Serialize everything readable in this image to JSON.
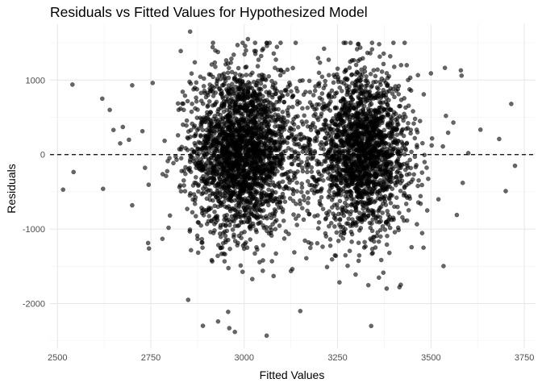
{
  "chart_data": {
    "type": "scatter",
    "title": "Residuals vs Fitted Values for Hypothesized Model",
    "xlabel": "Fitted Values",
    "ylabel": "Residuals",
    "xlim": [
      2480,
      3780
    ],
    "ylim": [
      -2600,
      1750
    ],
    "x_ticks": [
      2500,
      2750,
      3000,
      3250,
      3500,
      3750
    ],
    "y_ticks": [
      -2000,
      -1000,
      0,
      1000
    ],
    "x_tick_labels": [
      "2500",
      "2750",
      "3000",
      "3250",
      "3500",
      "3750"
    ],
    "y_tick_labels": [
      "-2000",
      "-1000",
      "0",
      "1000"
    ],
    "grid": true,
    "reference_line": {
      "y": 0,
      "style": "dashed"
    },
    "point_color": "#000000",
    "point_opacity": 0.6,
    "clusters": [
      {
        "center_x": 2990,
        "center_y": 50,
        "sd_x": 65,
        "sd_y": 560,
        "count": 2100
      },
      {
        "center_x": 3320,
        "center_y": 30,
        "sd_x": 60,
        "sd_y": 520,
        "count": 1700
      },
      {
        "center_x": 3160,
        "center_y": 0,
        "sd_x": 160,
        "sd_y": 600,
        "count": 600
      }
    ],
    "outliers": [
      {
        "x": 2515,
        "y": -470
      },
      {
        "x": 2540,
        "y": 940
      },
      {
        "x": 2543,
        "y": -235
      },
      {
        "x": 2620,
        "y": 750
      },
      {
        "x": 2622,
        "y": -460
      },
      {
        "x": 2640,
        "y": 600
      },
      {
        "x": 2650,
        "y": 330
      },
      {
        "x": 2675,
        "y": 370
      },
      {
        "x": 2700,
        "y": 930
      },
      {
        "x": 2700,
        "y": -680
      },
      {
        "x": 2745,
        "y": -1260
      },
      {
        "x": 2855,
        "y": 1650
      },
      {
        "x": 2830,
        "y": 1390
      },
      {
        "x": 2850,
        "y": -1950
      },
      {
        "x": 2930,
        "y": -2240
      },
      {
        "x": 2960,
        "y": -2330
      },
      {
        "x": 2975,
        "y": -2380
      },
      {
        "x": 3010,
        "y": 1550
      },
      {
        "x": 3060,
        "y": -2430
      },
      {
        "x": 3150,
        "y": -2100
      },
      {
        "x": 3305,
        "y": 1480
      },
      {
        "x": 3340,
        "y": -2300
      },
      {
        "x": 3420,
        "y": 1200
      },
      {
        "x": 3480,
        "y": -1250
      },
      {
        "x": 3490,
        "y": -750
      },
      {
        "x": 3500,
        "y": 1090
      },
      {
        "x": 3560,
        "y": 430
      },
      {
        "x": 3580,
        "y": 1130
      },
      {
        "x": 3582,
        "y": 1060
      },
      {
        "x": 3600,
        "y": 20
      },
      {
        "x": 3585,
        "y": -380
      },
      {
        "x": 3700,
        "y": -490
      },
      {
        "x": 3715,
        "y": 680
      },
      {
        "x": 3725,
        "y": -150
      },
      {
        "x": 3520,
        "y": -600
      },
      {
        "x": 3540,
        "y": 520
      }
    ]
  }
}
